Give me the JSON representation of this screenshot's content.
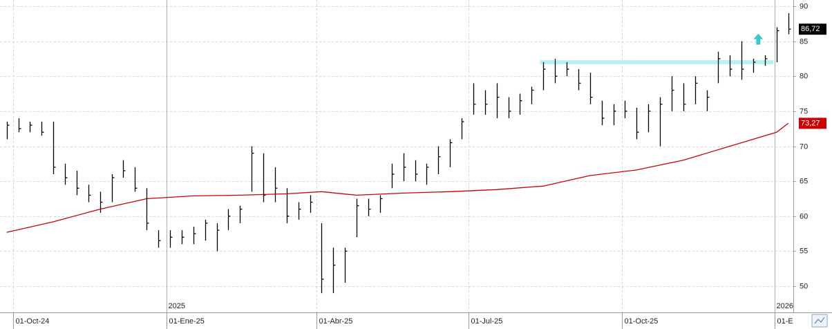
{
  "chart_data": {
    "type": "ohlc",
    "color": "#000000",
    "grid": true,
    "x": [
      "2024-09-27",
      "2024-10-04",
      "2024-10-11",
      "2024-10-18",
      "2024-10-25",
      "2024-11-01",
      "2024-11-08",
      "2024-11-15",
      "2024-11-22",
      "2024-11-29",
      "2024-12-06",
      "2024-12-13",
      "2024-12-20",
      "2024-12-27",
      "2025-01-03",
      "2025-01-10",
      "2025-01-17",
      "2025-01-24",
      "2025-01-31",
      "2025-02-07",
      "2025-02-14",
      "2025-02-21",
      "2025-02-28",
      "2025-03-07",
      "2025-03-14",
      "2025-03-21",
      "2025-03-28",
      "2025-04-04",
      "2025-04-11",
      "2025-04-18",
      "2025-04-25",
      "2025-05-02",
      "2025-05-09",
      "2025-05-16",
      "2025-05-23",
      "2025-05-30",
      "2025-06-06",
      "2025-06-13",
      "2025-06-20",
      "2025-06-27",
      "2025-07-04",
      "2025-07-11",
      "2025-07-18",
      "2025-07-25",
      "2025-08-01",
      "2025-08-08",
      "2025-08-15",
      "2025-08-22",
      "2025-08-29",
      "2025-09-05",
      "2025-09-12",
      "2025-09-19",
      "2025-09-26",
      "2025-10-03",
      "2025-10-10",
      "2025-10-17",
      "2025-10-24",
      "2025-10-31",
      "2025-11-07",
      "2025-11-14",
      "2025-11-21",
      "2025-11-28",
      "2025-12-05",
      "2025-12-12",
      "2025-12-19",
      "2025-12-26",
      "2026-01-02",
      "2026-01-09"
    ],
    "high": [
      73.5,
      74,
      73.5,
      73.5,
      73.5,
      67.5,
      66.5,
      64.5,
      63.5,
      66,
      68,
      67,
      64,
      58,
      58,
      58,
      58.5,
      59.5,
      59,
      61,
      61.5,
      70,
      69,
      67,
      64,
      62,
      63,
      59,
      55.5,
      55.5,
      62.5,
      62.5,
      63,
      67.5,
      69,
      68,
      67.5,
      70,
      71,
      74,
      79,
      78,
      79,
      77,
      77.5,
      78.5,
      82,
      82.5,
      82,
      81,
      80.5,
      76.5,
      76,
      76.5,
      75.5,
      76,
      77,
      80,
      79,
      80,
      78,
      83.5,
      83,
      85,
      82.5,
      83,
      87,
      89
    ],
    "low": [
      71,
      72,
      72,
      71.5,
      66,
      64.5,
      63,
      62,
      60.5,
      62,
      65.5,
      63.5,
      58,
      55.5,
      55.5,
      56,
      56,
      56.5,
      55,
      58,
      59,
      63.5,
      62,
      62,
      59,
      59.5,
      60.5,
      49,
      49,
      50.5,
      57,
      60,
      60.5,
      64,
      65,
      65,
      64.5,
      66,
      67,
      71,
      74.5,
      74.5,
      74,
      74,
      74.5,
      76,
      78,
      79,
      80,
      78,
      76,
      73,
      73,
      74,
      71,
      72,
      70,
      75,
      75,
      76,
      75,
      79,
      80,
      79.5,
      80.5,
      81.5,
      82,
      86
    ],
    "close": [
      73,
      72.5,
      73,
      72,
      67,
      65.5,
      64,
      63,
      62,
      65.5,
      66.5,
      64,
      59,
      56.5,
      57,
      57,
      57.5,
      59,
      58,
      60,
      61,
      69,
      63,
      64,
      60,
      61,
      62,
      51,
      53,
      55,
      61.5,
      61,
      62.5,
      66,
      67,
      66,
      67,
      68.5,
      70.5,
      73.5,
      76,
      76,
      77,
      75,
      76.5,
      78,
      81,
      80,
      81,
      79,
      77,
      74,
      75,
      75,
      72,
      75,
      76,
      78,
      76,
      79,
      77,
      82.5,
      81,
      81,
      82,
      82.5,
      86.5,
      86.72
    ],
    "moving_average": {
      "color": "#cc0000",
      "x": [
        "2024-09-27",
        "2024-10-25",
        "2024-11-22",
        "2024-12-20",
        "2025-01-17",
        "2025-02-14",
        "2025-03-14",
        "2025-04-04",
        "2025-04-25",
        "2025-05-23",
        "2025-06-20",
        "2025-07-18",
        "2025-08-15",
        "2025-09-12",
        "2025-10-10",
        "2025-11-07",
        "2025-12-05",
        "2026-01-02",
        "2026-01-09"
      ],
      "values": [
        57.7,
        59.2,
        61,
        62.5,
        62.9,
        63,
        63.2,
        63.5,
        63,
        63.3,
        63.5,
        63.8,
        64.3,
        65.8,
        66.6,
        68,
        70,
        72,
        73.27
      ]
    },
    "resistance": {
      "value": 82,
      "start": "2025-08-13",
      "end": "2025-12-31",
      "color": "#b8f0f4"
    },
    "arrow": {
      "x": "2025-12-22",
      "value": 85.3,
      "color": "#3cc8c8"
    },
    "last_price": {
      "value": 86.72,
      "label": "86,72"
    },
    "ma_price": {
      "value": 73.27,
      "label": "73,27"
    },
    "xlim": [
      "2024-09-23",
      "2026-01-12"
    ],
    "ylim": [
      46.25,
      90.89
    ],
    "yticks": [
      50,
      55,
      60,
      65,
      70,
      75,
      80,
      85,
      90
    ],
    "xticks": [
      {
        "value": "2024-10-01",
        "label": "01-Oct-24"
      },
      {
        "value": "2025-01-01",
        "label": "01-Ene-25"
      },
      {
        "value": "2025-04-01",
        "label": "01-Abr-25"
      },
      {
        "value": "2025-07-01",
        "label": "01-Jul-25"
      },
      {
        "value": "2025-10-01",
        "label": "01-Oct-25"
      },
      {
        "value": "2026-01-01",
        "label": "01-E"
      }
    ],
    "year_labels": [
      {
        "value": "2025-01-01",
        "label": "2025"
      },
      {
        "value": "2026-01-01",
        "label": "2026"
      }
    ]
  }
}
